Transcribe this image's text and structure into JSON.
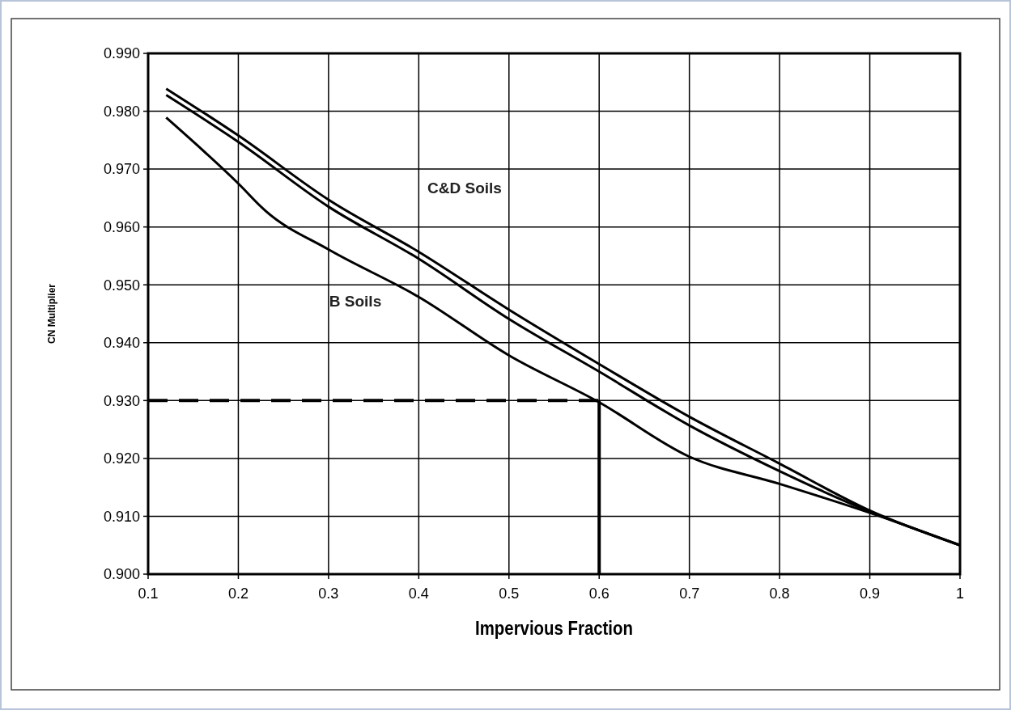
{
  "chart_data": {
    "type": "line",
    "xlabel": "Impervious Fraction",
    "ylabel": "CN Multiplier",
    "x": [
      0.12,
      0.2,
      0.3,
      0.4,
      0.5,
      0.6,
      0.7,
      0.8,
      0.9,
      1.0
    ],
    "series": [
      {
        "color": "#000000",
        "values": [
          0.9839,
          0.9758,
          0.9647,
          0.9557,
          0.9457,
          0.9363,
          0.9272,
          0.9191,
          0.911,
          0.905
        ]
      },
      {
        "color": "#000000",
        "values": [
          0.9828,
          0.9747,
          0.9635,
          0.9545,
          0.9441,
          0.935,
          0.9257,
          0.9178,
          0.9108,
          0.905
        ]
      },
      {
        "color": "#000000",
        "x": [
          0.12,
          0.2,
          0.23,
          0.3,
          0.4,
          0.5,
          0.6,
          0.7,
          0.8,
          0.9,
          1.0
        ],
        "values": [
          0.9789,
          0.9675,
          0.9628,
          0.9561,
          0.9479,
          0.9378,
          0.9297,
          0.9203,
          0.9156,
          0.9106,
          0.905
        ]
      }
    ],
    "xlim": [
      0.1,
      1
    ],
    "xticks": [
      0.1,
      0.2,
      0.3,
      0.4,
      0.5,
      0.6,
      0.7,
      0.8,
      0.9,
      {
        "value": 1,
        "label": "1"
      }
    ],
    "ylim": [
      0.9,
      0.99
    ],
    "yticks": [
      {
        "value": 0.9,
        "label": "0.900"
      },
      {
        "value": 0.91,
        "label": "0.910"
      },
      {
        "value": 0.92,
        "label": "0.920"
      },
      {
        "value": 0.93,
        "label": "0.930"
      },
      {
        "value": 0.94,
        "label": "0.940"
      },
      {
        "value": 0.95,
        "label": "0.950"
      },
      {
        "value": 0.96,
        "label": "0.960"
      },
      {
        "value": 0.97,
        "label": "0.970"
      },
      {
        "value": 0.98,
        "label": "0.980"
      },
      {
        "value": 0.99,
        "label": "0.990"
      }
    ],
    "grid": true,
    "marker": "none",
    "line_style": "solid",
    "ref_lines": [
      {
        "axis": "y",
        "value": 0.93,
        "line_style": "dashed",
        "color": "#000000"
      },
      {
        "axis": "x",
        "value": 0.6,
        "line_style": "solid",
        "color": "#000000"
      }
    ],
    "annotations": [
      "C&D Soils",
      "B Soils"
    ]
  }
}
